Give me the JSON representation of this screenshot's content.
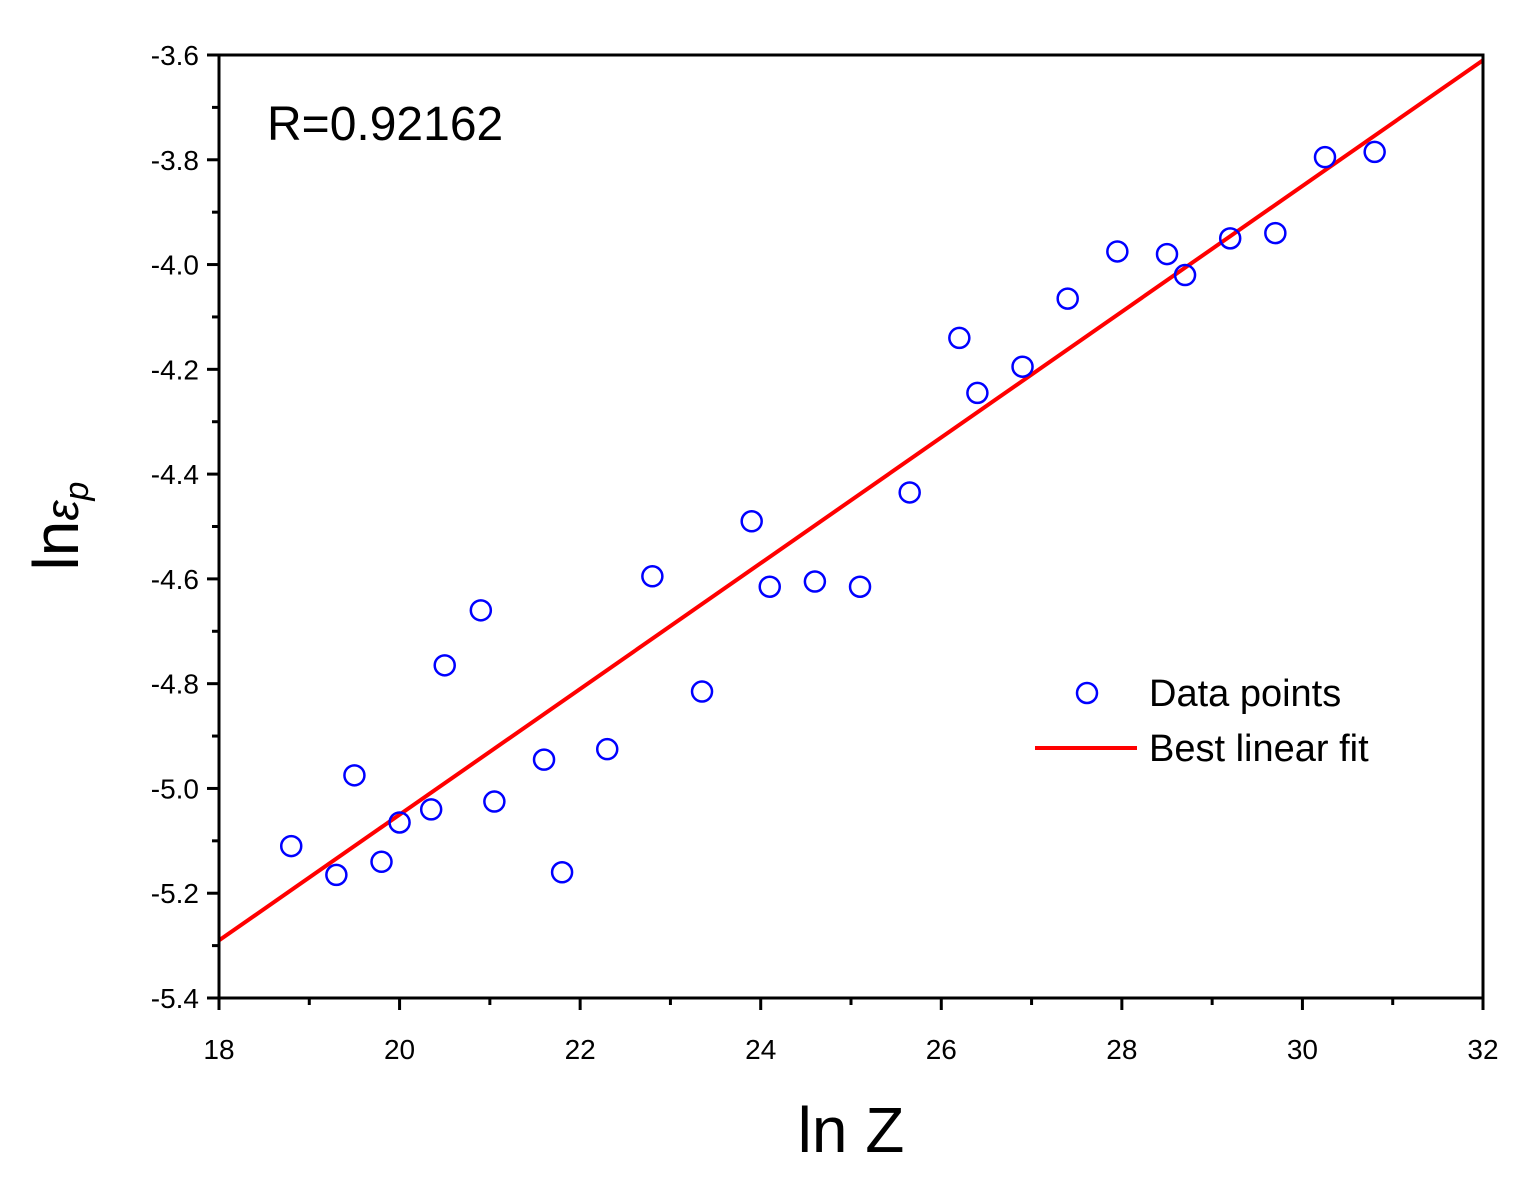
{
  "chart_data": {
    "type": "scatter",
    "title": "",
    "xlabel": "ln Z",
    "ylabel_main": "ln",
    "ylabel_symbol": "ε",
    "ylabel_subscript": "p",
    "xlim": [
      18,
      32
    ],
    "ylim": [
      -5.4,
      -3.6
    ],
    "x_major_ticks": [
      18,
      20,
      22,
      24,
      26,
      28,
      30,
      32
    ],
    "x_tick_labels": [
      "18",
      "20",
      "22",
      "24",
      "26",
      "28",
      "30",
      "32"
    ],
    "y_major_ticks": [
      -3.6,
      -3.8,
      -4.0,
      -4.2,
      -4.4,
      -4.6,
      -4.8,
      -5.0,
      -5.2,
      -5.4
    ],
    "y_tick_labels": [
      "-3.6",
      "-3.8",
      "-4.0",
      "-4.2",
      "-4.4",
      "-4.6",
      "-4.8",
      "-5.0",
      "-5.2",
      "-5.4"
    ],
    "annotation": "R=0.92162",
    "grid": false,
    "legend_position": "right",
    "series": [
      {
        "name": "Data points",
        "kind": "scatter",
        "marker": "open-circle",
        "color": "#0000ff",
        "x": [
          18.8,
          19.3,
          19.5,
          19.8,
          20.0,
          20.35,
          20.5,
          20.9,
          21.05,
          21.6,
          21.8,
          22.3,
          22.8,
          23.35,
          23.9,
          24.1,
          24.6,
          25.1,
          25.65,
          26.2,
          26.4,
          26.9,
          27.4,
          27.95,
          28.5,
          28.7,
          29.2,
          29.7,
          30.25,
          30.8
        ],
        "y": [
          -5.11,
          -5.165,
          -4.975,
          -5.14,
          -5.065,
          -5.04,
          -4.765,
          -4.66,
          -5.025,
          -4.945,
          -5.16,
          -4.925,
          -4.595,
          -4.815,
          -4.49,
          -4.615,
          -4.605,
          -4.615,
          -4.435,
          -4.14,
          -4.245,
          -4.195,
          -4.065,
          -3.975,
          -3.98,
          -4.02,
          -3.95,
          -3.94,
          -3.795,
          -3.785
        ]
      },
      {
        "name": "Best linear fit",
        "kind": "line",
        "color": "#ff0000",
        "x": [
          18,
          32
        ],
        "y": [
          -5.29,
          -3.61
        ]
      }
    ]
  }
}
